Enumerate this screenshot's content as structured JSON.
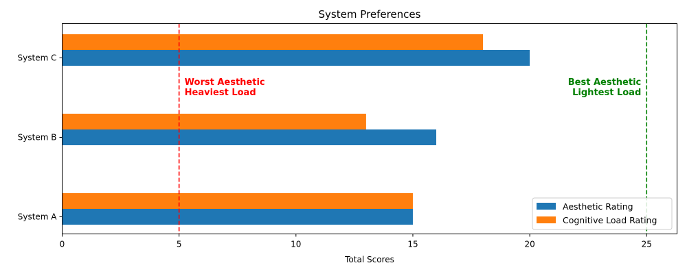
{
  "chart_data": {
    "type": "bar",
    "orientation": "horizontal",
    "title": "System Preferences",
    "xlabel": "Total Scores",
    "ylabel": "",
    "categories": [
      "System A",
      "System B",
      "System C"
    ],
    "series": [
      {
        "name": "Aesthetic Rating",
        "values": [
          15,
          16,
          20
        ],
        "color": "#1f77b4"
      },
      {
        "name": "Cognitive Load Rating",
        "values": [
          15,
          13,
          18
        ],
        "color": "#ff7f0e"
      }
    ],
    "xlim": [
      0,
      26.3
    ],
    "xticks": [
      0,
      5,
      10,
      15,
      20,
      25
    ],
    "grid": false,
    "legend_position": "bottom-right",
    "reference_lines": [
      {
        "x": 5,
        "color": "#ff0000",
        "style": "dashed",
        "label_lines": [
          "Worst Aesthetic",
          "Heaviest Load"
        ]
      },
      {
        "x": 25,
        "color": "#008000",
        "style": "dashed",
        "label_lines": [
          "Best Aesthetic",
          "Lightest Load"
        ]
      }
    ]
  }
}
